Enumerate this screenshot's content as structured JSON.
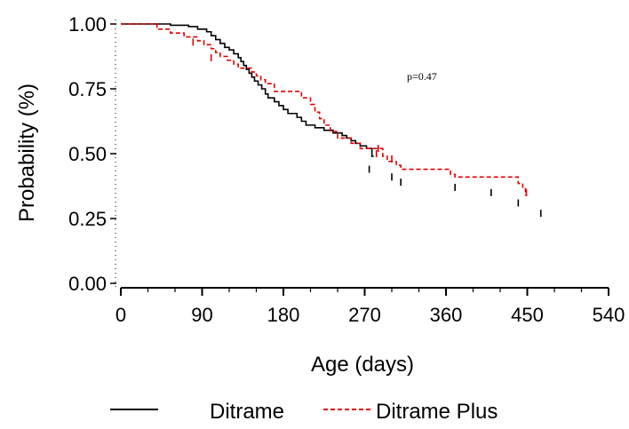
{
  "chart_data": {
    "type": "line",
    "subtype": "kaplan-meier step",
    "xlabel": "Age (days)",
    "ylabel": "Probability (%)",
    "xlim": [
      0,
      540
    ],
    "ylim": [
      0,
      1
    ],
    "x_ticks": [
      0,
      90,
      180,
      270,
      360,
      450,
      540
    ],
    "x_tick_labels": [
      "0",
      "90",
      "180",
      "270",
      "360",
      "450",
      "540"
    ],
    "y_ticks": [
      0,
      0.25,
      0.5,
      0.75,
      1.0
    ],
    "y_tick_labels": [
      "0.00",
      "0.25",
      "0.50",
      "0.75",
      "1.00"
    ],
    "annotation": "p=0.47",
    "grid": false,
    "legend_position": "bottom",
    "series": [
      {
        "name": "Ditrame",
        "color": "#000000",
        "dash": "solid",
        "steps": [
          [
            0,
            1.0
          ],
          [
            55,
            0.995
          ],
          [
            75,
            0.99
          ],
          [
            85,
            0.98
          ],
          [
            95,
            0.97
          ],
          [
            100,
            0.955
          ],
          [
            105,
            0.94
          ],
          [
            110,
            0.925
          ],
          [
            115,
            0.91
          ],
          [
            120,
            0.9
          ],
          [
            125,
            0.885
          ],
          [
            130,
            0.87
          ],
          [
            133,
            0.855
          ],
          [
            136,
            0.84
          ],
          [
            139,
            0.825
          ],
          [
            142,
            0.81
          ],
          [
            145,
            0.795
          ],
          [
            148,
            0.78
          ],
          [
            152,
            0.765
          ],
          [
            156,
            0.75
          ],
          [
            160,
            0.73
          ],
          [
            163,
            0.715
          ],
          [
            170,
            0.7
          ],
          [
            175,
            0.685
          ],
          [
            180,
            0.67
          ],
          [
            185,
            0.655
          ],
          [
            195,
            0.64
          ],
          [
            200,
            0.625
          ],
          [
            205,
            0.61
          ],
          [
            215,
            0.6
          ],
          [
            225,
            0.59
          ],
          [
            235,
            0.58
          ],
          [
            245,
            0.57
          ],
          [
            250,
            0.56
          ],
          [
            255,
            0.55
          ],
          [
            260,
            0.54
          ],
          [
            265,
            0.53
          ],
          [
            272,
            0.52
          ],
          [
            278,
            0.49
          ]
        ],
        "censor_marks": [
          [
            275,
            0.44
          ],
          [
            300,
            0.41
          ],
          [
            310,
            0.39
          ],
          [
            370,
            0.37
          ],
          [
            410,
            0.35
          ],
          [
            440,
            0.31
          ],
          [
            465,
            0.27
          ]
        ]
      },
      {
        "name": "Ditrame Plus",
        "color": "#e00000",
        "dash": "dashed",
        "steps": [
          [
            0,
            1.0
          ],
          [
            40,
            0.98
          ],
          [
            55,
            0.965
          ],
          [
            70,
            0.95
          ],
          [
            85,
            0.935
          ],
          [
            92,
            0.92
          ],
          [
            100,
            0.905
          ],
          [
            105,
            0.89
          ],
          [
            110,
            0.875
          ],
          [
            118,
            0.86
          ],
          [
            125,
            0.845
          ],
          [
            130,
            0.83
          ],
          [
            145,
            0.815
          ],
          [
            150,
            0.8
          ],
          [
            155,
            0.785
          ],
          [
            160,
            0.77
          ],
          [
            170,
            0.74
          ],
          [
            200,
            0.715
          ],
          [
            210,
            0.69
          ],
          [
            215,
            0.66
          ],
          [
            220,
            0.635
          ],
          [
            225,
            0.61
          ],
          [
            232,
            0.585
          ],
          [
            240,
            0.56
          ],
          [
            255,
            0.54
          ],
          [
            265,
            0.52
          ],
          [
            290,
            0.49
          ],
          [
            295,
            0.47
          ],
          [
            305,
            0.455
          ],
          [
            310,
            0.44
          ],
          [
            365,
            0.42
          ],
          [
            370,
            0.41
          ],
          [
            440,
            0.385
          ],
          [
            445,
            0.365
          ],
          [
            448,
            0.34
          ]
        ],
        "censor_marks": [
          [
            80,
            0.93
          ],
          [
            100,
            0.87
          ],
          [
            283,
            0.5
          ],
          [
            285,
            0.52
          ],
          [
            300,
            0.48
          ],
          [
            449,
            0.35
          ]
        ]
      }
    ]
  }
}
